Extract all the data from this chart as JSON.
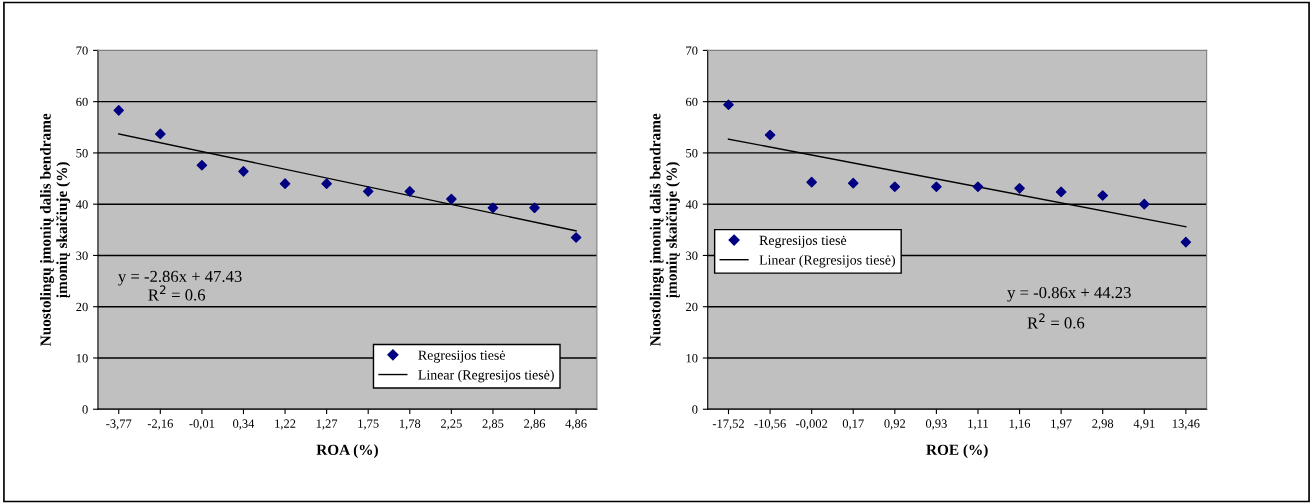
{
  "chart_data": [
    {
      "type": "scatter",
      "xlabel": "ROA (%)",
      "ylabel": "Nuostolingų įmonių dalis bendrame\nįmonių skaičiuje (%)",
      "categories": [
        "-3,77",
        "-2,16",
        "-0,01",
        "0,34",
        "1,22",
        "1,27",
        "1,75",
        "1,78",
        "2,25",
        "2,85",
        "2,86",
        "4,86"
      ],
      "series": [
        {
          "name": "Regresijos tiesė",
          "marker": "diamond",
          "color": "#000080",
          "values": [
            58.3,
            53.7,
            47.6,
            46.4,
            44.0,
            44.0,
            42.5,
            42.5,
            41.0,
            39.3,
            39.3,
            33.5
          ]
        },
        {
          "name": "Linear (Regresijos tiesė)",
          "type": "line",
          "marker": "none",
          "color": "#000000",
          "x": [
            "-3,77",
            "4,86"
          ],
          "values": [
            53.7,
            34.8
          ]
        }
      ],
      "ylim": [
        0,
        70
      ],
      "yticks": [
        0,
        10,
        20,
        30,
        40,
        50,
        60,
        70
      ],
      "grid": "y",
      "legend": "bottom right",
      "annotations": [
        "y = -2.86x + 47.43",
        "R$^{2}$ = 0.6"
      ]
    },
    {
      "type": "scatter",
      "xlabel": "ROE (%)",
      "ylabel": "Nuostolingų įmonių dalis bendrame\nįmonių skaičiuje (%)",
      "categories": [
        "-17,52",
        "-10,56",
        "-0,002",
        "0,17",
        "0,92",
        "0,93",
        "1,11",
        "1,16",
        "1,97",
        "2,98",
        "4,91",
        "13,46"
      ],
      "series": [
        {
          "name": "Regresijos tiesė",
          "marker": "diamond",
          "color": "#000080",
          "values": [
            59.4,
            53.5,
            44.3,
            44.1,
            43.4,
            43.4,
            43.4,
            43.1,
            42.4,
            41.7,
            40.0,
            32.6
          ]
        },
        {
          "name": "Linear (Regresijos tiesė)",
          "type": "line",
          "marker": "none",
          "color": "#000000",
          "x": [
            "-17,52",
            "13,46"
          ],
          "values": [
            52.7,
            35.6
          ]
        }
      ],
      "ylim": [
        0,
        70
      ],
      "yticks": [
        0,
        10,
        20,
        30,
        40,
        50,
        60,
        70
      ],
      "grid": "y",
      "legend": "bottom left",
      "annotations": [
        "y = -0.86x + 44.23",
        "R$^{2}$ = 0.6"
      ]
    }
  ]
}
